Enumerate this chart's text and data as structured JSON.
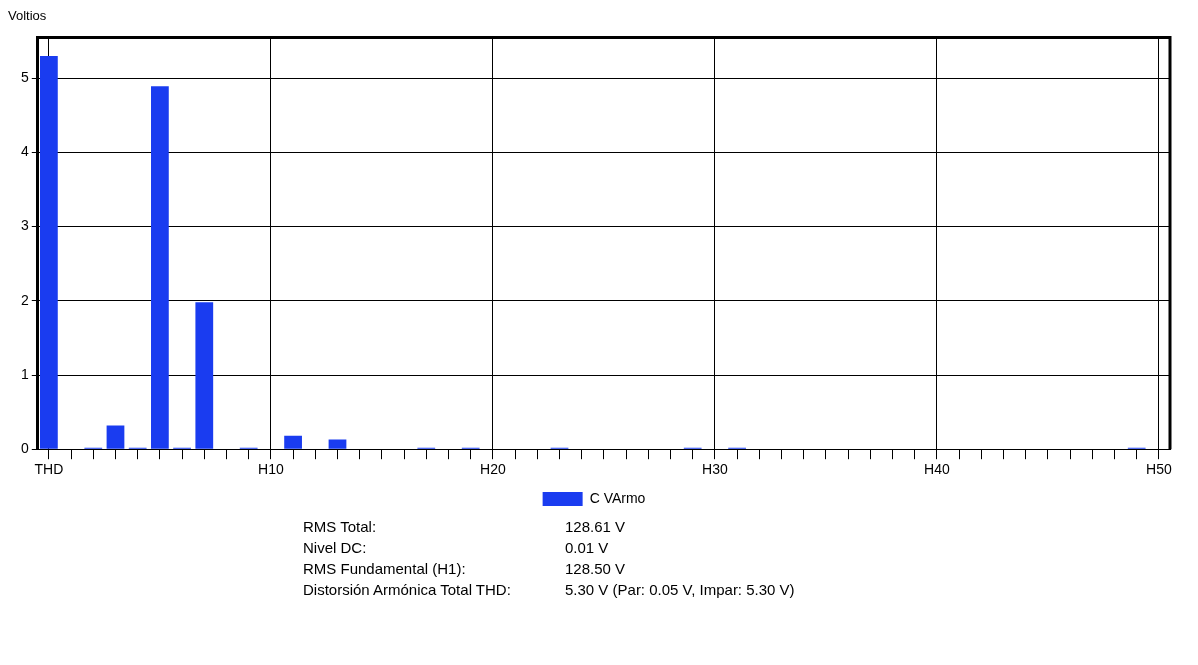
{
  "chart_data": {
    "type": "bar",
    "ylabel": "Voltios",
    "categories": [
      "THD",
      null,
      null,
      null,
      null,
      null,
      null,
      null,
      null,
      null,
      "H10",
      null,
      null,
      null,
      null,
      null,
      null,
      null,
      null,
      null,
      "H20",
      null,
      null,
      null,
      null,
      null,
      null,
      null,
      null,
      null,
      "H30",
      null,
      null,
      null,
      null,
      null,
      null,
      null,
      null,
      null,
      "H40",
      null,
      null,
      null,
      null,
      null,
      null,
      null,
      null,
      null,
      "H50"
    ],
    "series": [
      {
        "name": "C VArmo",
        "color": "#1a3cf0",
        "values": [
          5.3,
          0,
          0.02,
          0.32,
          0.02,
          4.89,
          0.02,
          1.98,
          0,
          0.02,
          0,
          0.18,
          0,
          0.13,
          0,
          0,
          0,
          0.02,
          0,
          0.02,
          0,
          0,
          0,
          0.02,
          0,
          0,
          0,
          0,
          0,
          0.02,
          0,
          0.02,
          0,
          0,
          0,
          0,
          0,
          0,
          0,
          0,
          0,
          0,
          0,
          0,
          0,
          0,
          0,
          0,
          0,
          0.02,
          0
        ]
      }
    ],
    "ylim": [
      0,
      5.55
    ],
    "yticks": [
      0,
      1,
      2,
      3,
      4,
      5
    ],
    "grid": true,
    "legend": "bottom",
    "annotations": [
      "RMS Total:",
      "128.61 V",
      "Nivel DC:",
      "0.01 V",
      "RMS Fundamental (H1):",
      "128.50 V",
      "Distorsión Armónica Total THD:",
      "5.30 V (Par: 0.05 V, Impar: 5.30 V)"
    ]
  }
}
